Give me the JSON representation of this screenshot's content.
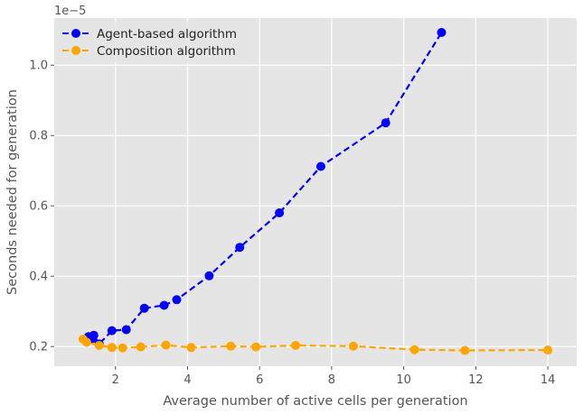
{
  "chart_data": {
    "type": "line",
    "title": "",
    "xlabel": "Average number of active cells per generation",
    "ylabel": "Seconds needed for generation",
    "offset_label": "1e−5",
    "xlim": [
      0.3,
      14.8
    ],
    "ylim": [
      0.144,
      1.134
    ],
    "xticks": [
      2,
      4,
      6,
      8,
      10,
      12,
      14
    ],
    "xtick_labels": [
      "2",
      "4",
      "6",
      "8",
      "10",
      "12",
      "14"
    ],
    "yticks": [
      0.2,
      0.4,
      0.6,
      0.8,
      1.0
    ],
    "ytick_labels": [
      "0.2",
      "0.4",
      "0.6",
      "0.8",
      "1.0"
    ],
    "grid": true,
    "legend_position": "top-left",
    "series": [
      {
        "name": "Agent-based algorithm",
        "color": "#0000ff",
        "linestyle": "dashed",
        "marker": "circle",
        "x": [
          1.25,
          1.35,
          1.4,
          1.55,
          1.9,
          2.3,
          2.8,
          3.35,
          3.7,
          4.6,
          5.45,
          6.55,
          7.7,
          9.5,
          11.05
        ],
        "y": [
          0.228,
          0.222,
          0.232,
          0.207,
          0.245,
          0.248,
          0.309,
          0.317,
          0.333,
          0.401,
          0.482,
          0.58,
          0.712,
          0.836,
          1.093
        ]
      },
      {
        "name": "Composition algorithm",
        "color": "#ffa500",
        "linestyle": "dashed",
        "marker": "circle",
        "x": [
          1.1,
          1.2,
          1.55,
          1.9,
          2.2,
          2.7,
          3.4,
          4.1,
          5.2,
          5.9,
          7.0,
          8.6,
          10.3,
          11.7,
          14.0
        ],
        "y": [
          0.221,
          0.212,
          0.203,
          0.197,
          0.196,
          0.199,
          0.204,
          0.197,
          0.201,
          0.199,
          0.203,
          0.201,
          0.191,
          0.189,
          0.19
        ]
      }
    ]
  }
}
